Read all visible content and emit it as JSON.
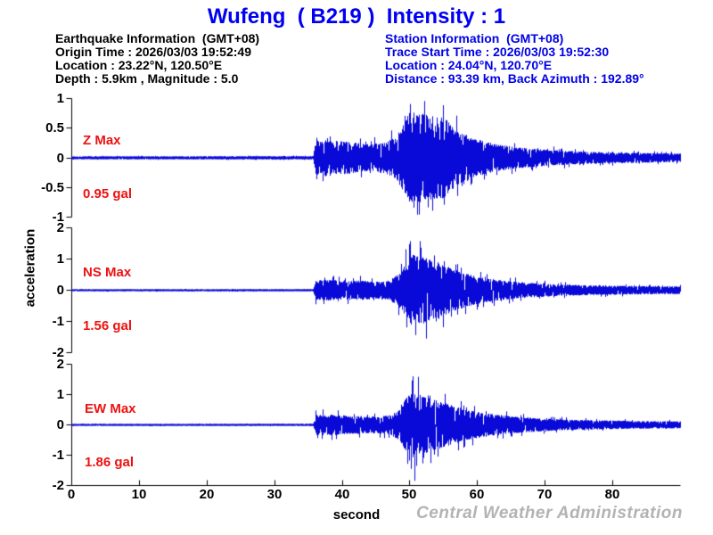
{
  "title": "Wufeng  ( B219 )  Intensity : 1",
  "earthquake_info": {
    "heading": "Earthquake Information  (GMT+08)",
    "origin_time": "Origin Time : 2026/03/03 19:52:49",
    "location": "Location : 23.22°N, 120.50°E",
    "depth_magnitude": "Depth : 5.9km , Magnitude : 5.0"
  },
  "station_info": {
    "heading": "Station Information  (GMT+08)",
    "trace_start_time": "Trace Start Time : 2026/03/03 19:52:30",
    "location": "Location : 24.04°N, 120.70°E",
    "distance_azimuth": "Distance : 93.39 km, Back Azimuth : 192.89°"
  },
  "watermark": "Central Weather Administration",
  "colors": {
    "title_blue": "#0000f2",
    "station_blue": "#0000e6",
    "info_black": "#000000",
    "trace_blue": "#0a0ad8",
    "max_red": "#ee1111",
    "axis_black": "#000000",
    "watermark_gray": "#b3b3b3"
  },
  "chart_data": {
    "type": "line",
    "variant": "seismogram-3-component",
    "title": "Wufeng ( B219 ) Intensity : 1",
    "xlabel": "second",
    "ylabel": "acceleration",
    "xlim": [
      0,
      90
    ],
    "xticks": [
      0,
      10,
      20,
      30,
      40,
      50,
      60,
      70,
      80
    ],
    "grid": false,
    "p_arrival_s": 35.9,
    "s_arrival_s": 49.5,
    "series": [
      {
        "name": "Z",
        "component": "vertical",
        "max_label": "Z Max",
        "max_value": 0.95,
        "max_value_label": "0.95 gal",
        "unit": "gal",
        "ylim": [
          -1,
          1
        ],
        "yticks": [
          1,
          0.5,
          0,
          -0.5,
          -1
        ],
        "seed": 101,
        "envelope_gal_vs_s": [
          [
            0,
            0.018
          ],
          [
            35.7,
            0.02
          ],
          [
            36.1,
            0.28
          ],
          [
            38,
            0.3
          ],
          [
            41,
            0.26
          ],
          [
            44,
            0.22
          ],
          [
            46.5,
            0.26
          ],
          [
            48,
            0.35
          ],
          [
            49,
            0.55
          ],
          [
            50,
            0.8
          ],
          [
            51.5,
            0.75
          ],
          [
            53,
            0.7
          ],
          [
            55,
            0.68
          ],
          [
            56.5,
            0.52
          ],
          [
            58,
            0.4
          ],
          [
            60,
            0.3
          ],
          [
            63,
            0.22
          ],
          [
            66,
            0.17
          ],
          [
            70,
            0.13
          ],
          [
            75,
            0.1
          ],
          [
            80,
            0.085
          ],
          [
            85,
            0.075
          ],
          [
            90,
            0.065
          ]
        ],
        "peaks": [
          [
            49.3,
            0.7
          ],
          [
            50.1,
            0.9
          ],
          [
            50.6,
            -0.85
          ],
          [
            51.4,
            -0.95
          ],
          [
            52.2,
            0.95
          ],
          [
            53.4,
            -0.9
          ],
          [
            54.9,
            0.88
          ]
        ]
      },
      {
        "name": "NS",
        "component": "north-south",
        "max_label": "NS Max",
        "max_value": 1.56,
        "max_value_label": "1.56 gal",
        "unit": "gal",
        "ylim": [
          -2,
          2
        ],
        "yticks": [
          2,
          1,
          0,
          -1,
          -2
        ],
        "seed": 202,
        "envelope_gal_vs_s": [
          [
            0,
            0.02
          ],
          [
            35.7,
            0.022
          ],
          [
            36.1,
            0.3
          ],
          [
            38,
            0.33
          ],
          [
            40,
            0.28
          ],
          [
            43,
            0.3
          ],
          [
            45,
            0.26
          ],
          [
            47,
            0.3
          ],
          [
            48.5,
            0.55
          ],
          [
            49.5,
            0.95
          ],
          [
            50.5,
            1.15
          ],
          [
            52,
            1.05
          ],
          [
            53.5,
            0.95
          ],
          [
            55,
            0.8
          ],
          [
            57,
            0.62
          ],
          [
            59,
            0.48
          ],
          [
            61,
            0.38
          ],
          [
            64,
            0.29
          ],
          [
            68,
            0.22
          ],
          [
            72,
            0.17
          ],
          [
            78,
            0.14
          ],
          [
            84,
            0.12
          ],
          [
            90,
            0.11
          ]
        ],
        "peaks": [
          [
            49.4,
            1.3
          ],
          [
            50.1,
            1.56
          ],
          [
            50.8,
            -1.45
          ],
          [
            51.7,
            1.35
          ],
          [
            52.4,
            -1.56
          ],
          [
            53.6,
            1.1
          ],
          [
            55.0,
            -1.2
          ]
        ]
      },
      {
        "name": "EW",
        "component": "east-west",
        "max_label": "EW Max",
        "max_value": 1.86,
        "max_value_label": "1.86 gal",
        "unit": "gal",
        "ylim": [
          -2,
          2
        ],
        "yticks": [
          2,
          1,
          0,
          -1,
          -2
        ],
        "seed": 303,
        "envelope_gal_vs_s": [
          [
            0,
            0.02
          ],
          [
            35.7,
            0.022
          ],
          [
            36.1,
            0.32
          ],
          [
            38,
            0.34
          ],
          [
            40,
            0.3
          ],
          [
            43,
            0.28
          ],
          [
            45,
            0.26
          ],
          [
            47,
            0.3
          ],
          [
            48.5,
            0.5
          ],
          [
            49.5,
            0.9
          ],
          [
            50.5,
            1.1
          ],
          [
            52,
            0.95
          ],
          [
            54,
            0.8
          ],
          [
            56,
            0.65
          ],
          [
            58,
            0.52
          ],
          [
            60,
            0.42
          ],
          [
            63,
            0.32
          ],
          [
            66,
            0.25
          ],
          [
            70,
            0.19
          ],
          [
            75,
            0.15
          ],
          [
            80,
            0.13
          ],
          [
            85,
            0.11
          ],
          [
            90,
            0.1
          ]
        ],
        "peaks": [
          [
            49.7,
            -1.3
          ],
          [
            50.3,
            1.45
          ],
          [
            50.7,
            -1.86
          ],
          [
            51.3,
            1.57
          ],
          [
            52.1,
            -1.1
          ],
          [
            53.0,
            0.95
          ]
        ]
      }
    ]
  }
}
